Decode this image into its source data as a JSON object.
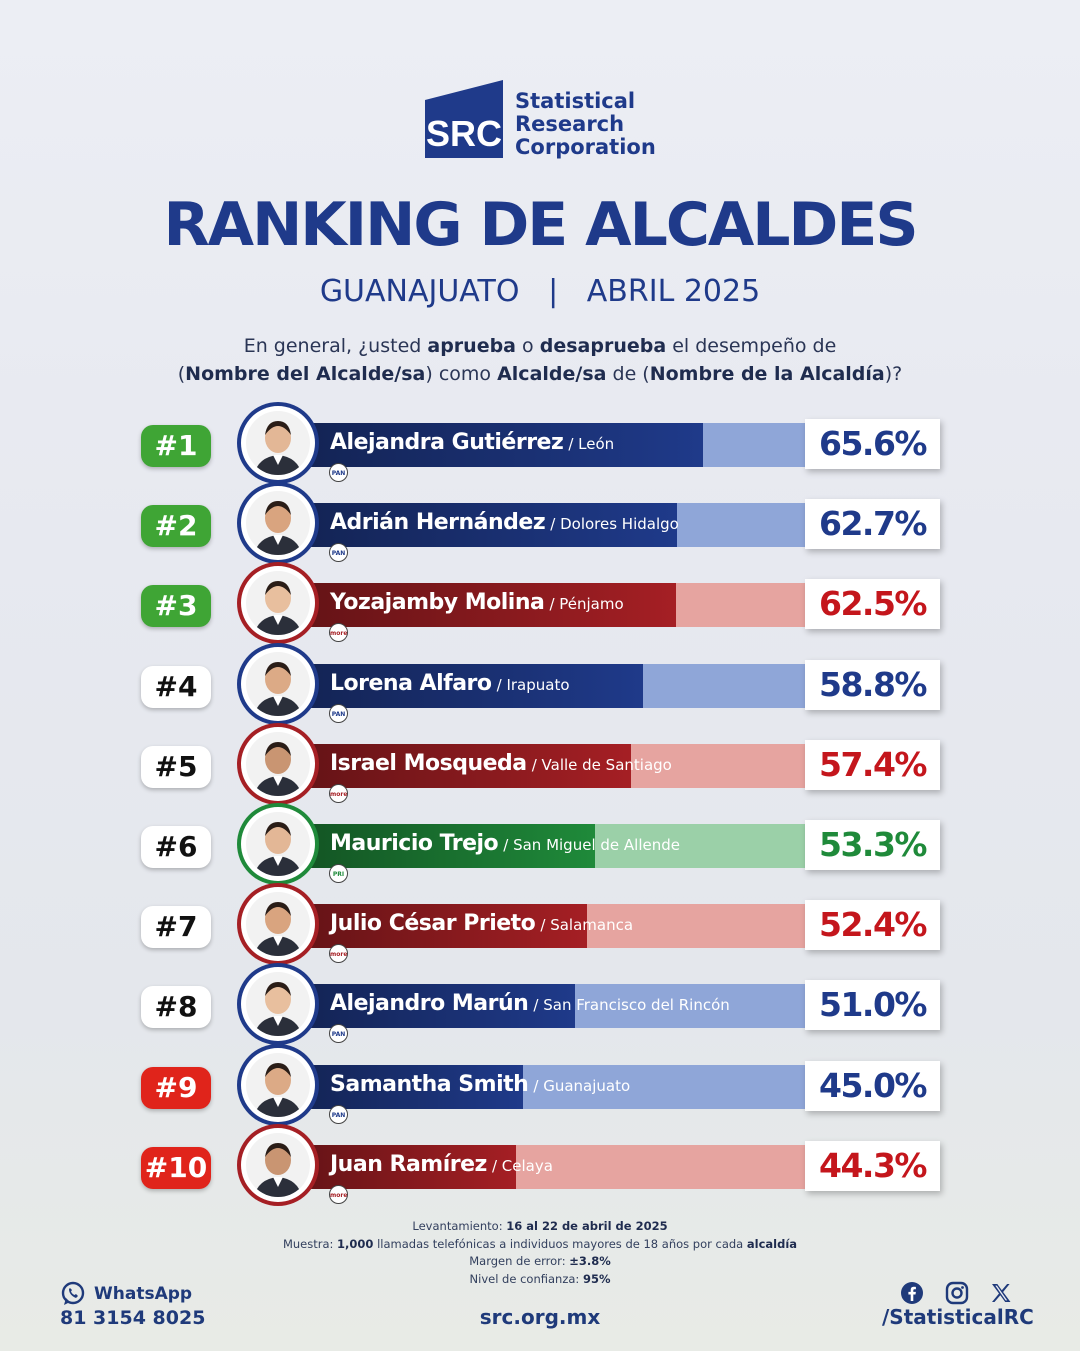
{
  "logo": {
    "mark": "SRC",
    "line1": "Statistical",
    "line2": "Research",
    "line3": "Corporation"
  },
  "header": {
    "title": "RANKING DE ALCALDES",
    "region": "GUANAJUATO",
    "separator": "|",
    "period": "ABRIL 2025"
  },
  "question": {
    "p1": "En general, ¿usted ",
    "b1": "aprueba",
    "p2": " o ",
    "b2": "desaprueba",
    "p3": " el desempeño de",
    "p4": "(",
    "b3": "Nombre del Alcalde/sa",
    "p5": ") como ",
    "b4": "Alcalde/sa",
    "p6": " de (",
    "b5": "Nombre de la Alcaldía",
    "p7": ")?"
  },
  "colors": {
    "green_badge": "#3fa535",
    "red_badge": "#e0241b",
    "blue_text": "#1f3a8a"
  },
  "chart_data": {
    "type": "bar",
    "orientation": "horizontal",
    "unit": "%",
    "xlim": [
      0,
      100
    ],
    "rows": [
      {
        "rank": "#1",
        "name": "Alejandra Gutiérrez",
        "city": "/ León",
        "value": 65.6,
        "label": "65.6%",
        "party": "PAN",
        "bar_color": "#1f3a8a",
        "tint_color": "#8fa6d8",
        "pct_color": "#1f3a8a",
        "badge": "green"
      },
      {
        "rank": "#2",
        "name": "Adrián Hernández",
        "city": "/ Dolores Hidalgo",
        "value": 62.7,
        "label": "62.7%",
        "party": "PAN",
        "bar_color": "#1f3a8a",
        "tint_color": "#8fa6d8",
        "pct_color": "#1f3a8a",
        "badge": "green"
      },
      {
        "rank": "#3",
        "name": "Yozajamby Molina",
        "city": "/ Pénjamo",
        "value": 62.5,
        "label": "62.5%",
        "party": "morena",
        "bar_color": "#a51f24",
        "tint_color": "#e6a4a0",
        "pct_color": "#c4161c",
        "badge": "green"
      },
      {
        "rank": "#4",
        "name": "Lorena Alfaro",
        "city": "/ Irapuato",
        "value": 58.8,
        "label": "58.8%",
        "party": "PAN",
        "bar_color": "#1f3a8a",
        "tint_color": "#8fa6d8",
        "pct_color": "#1f3a8a",
        "badge": "white"
      },
      {
        "rank": "#5",
        "name": "Israel Mosqueda",
        "city": "/ Valle de Santiago",
        "value": 57.4,
        "label": "57.4%",
        "party": "morena",
        "bar_color": "#a51f24",
        "tint_color": "#e6a4a0",
        "pct_color": "#c4161c",
        "badge": "white"
      },
      {
        "rank": "#6",
        "name": "Mauricio Trejo",
        "city": "/ San Miguel de Allende",
        "value": 53.3,
        "label": "53.3%",
        "party": "PRI",
        "bar_color": "#1f8a3a",
        "tint_color": "#9bd0a8",
        "pct_color": "#1f8a3a",
        "badge": "white"
      },
      {
        "rank": "#7",
        "name": "Julio César Prieto",
        "city": "/ Salamanca",
        "value": 52.4,
        "label": "52.4%",
        "party": "morena",
        "bar_color": "#a51f24",
        "tint_color": "#e6a4a0",
        "pct_color": "#c4161c",
        "badge": "white"
      },
      {
        "rank": "#8",
        "name": "Alejandro Marún",
        "city": "/ San Francisco del Rincón",
        "value": 51.0,
        "label": "51.0%",
        "party": "PAN",
        "bar_color": "#1f3a8a",
        "tint_color": "#8fa6d8",
        "pct_color": "#1f3a8a",
        "badge": "white"
      },
      {
        "rank": "#9",
        "name": "Samantha Smith",
        "city": "/ Guanajuato",
        "value": 45.0,
        "label": "45.0%",
        "party": "PAN",
        "bar_color": "#1f3a8a",
        "tint_color": "#8fa6d8",
        "pct_color": "#1f3a8a",
        "badge": "red"
      },
      {
        "rank": "#10",
        "name": "Juan Ramírez",
        "city": "/ Celaya",
        "value": 44.3,
        "label": "44.3%",
        "party": "morena",
        "bar_color": "#a51f24",
        "tint_color": "#e6a4a0",
        "pct_color": "#c4161c",
        "badge": "red"
      }
    ]
  },
  "footnotes": {
    "l1_label": "Levantamiento: ",
    "l1_value": "16 al 22 de abril de 2025",
    "l2_label": "Muestra: ",
    "l2_value": "1,000",
    "l2_text": " llamadas telefónicas a individuos mayores de 18 años por cada ",
    "l2_tail": "alcaldía",
    "l3_label": "Margen de error: ",
    "l3_value": "±3.8%",
    "l4_label": "Nivel de confianza: ",
    "l4_value": "95%"
  },
  "footer": {
    "whatsapp_label": "WhatsApp",
    "whatsapp_number": "81 3154 8025",
    "website": "src.org.mx",
    "social_handle": "/StatisticalRC",
    "icons": [
      "whatsapp-icon",
      "facebook-icon",
      "instagram-icon",
      "x-icon"
    ]
  }
}
